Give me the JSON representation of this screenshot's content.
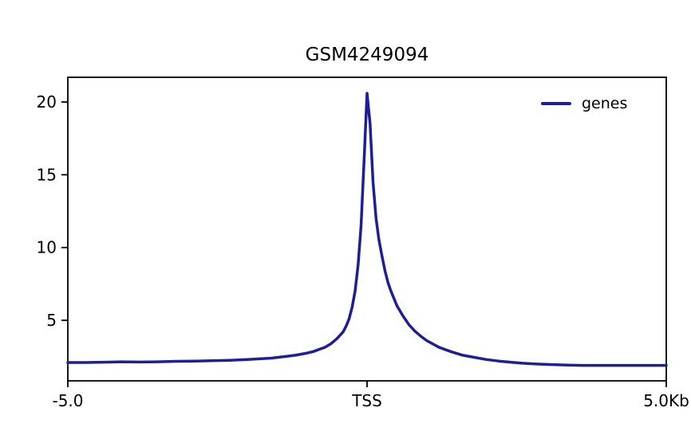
{
  "chart_data": {
    "type": "line",
    "title": "GSM4249094",
    "xlabel": "",
    "ylabel": "",
    "xlim": [
      -5,
      5
    ],
    "ylim": [
      0.84,
      21.7
    ],
    "grid": false,
    "background_color": "#ffffff",
    "frame_color": "#000000",
    "tick_font_size": 20,
    "x_unit": "Kb",
    "xticks": [
      {
        "pos": -5,
        "label": "-5.0"
      },
      {
        "pos": 0,
        "label": "TSS"
      },
      {
        "pos": 5,
        "label": "5.0Kb"
      }
    ],
    "yticks": [
      5,
      10,
      15,
      20
    ],
    "legend": {
      "position": "upper right",
      "entries": [
        "genes"
      ]
    },
    "series": [
      {
        "name": "genes",
        "color": "#1e1e96",
        "x": [
          -5.0,
          -4.7,
          -4.4,
          -4.1,
          -3.8,
          -3.5,
          -3.2,
          -2.9,
          -2.6,
          -2.3,
          -2.0,
          -1.8,
          -1.6,
          -1.4,
          -1.2,
          -1.0,
          -0.9,
          -0.8,
          -0.7,
          -0.6,
          -0.5,
          -0.4,
          -0.35,
          -0.3,
          -0.25,
          -0.2,
          -0.15,
          -0.1,
          -0.05,
          0.0,
          0.05,
          0.1,
          0.15,
          0.2,
          0.25,
          0.3,
          0.35,
          0.4,
          0.5,
          0.6,
          0.7,
          0.8,
          0.9,
          1.0,
          1.2,
          1.4,
          1.6,
          1.8,
          2.0,
          2.2,
          2.4,
          2.6,
          2.8,
          3.0,
          3.3,
          3.6,
          3.9,
          4.2,
          4.5,
          4.8,
          5.0
        ],
        "y": [
          2.1,
          2.1,
          2.12,
          2.15,
          2.13,
          2.15,
          2.18,
          2.2,
          2.22,
          2.25,
          2.3,
          2.35,
          2.4,
          2.5,
          2.6,
          2.75,
          2.85,
          3.0,
          3.15,
          3.4,
          3.75,
          4.2,
          4.6,
          5.1,
          5.9,
          7.0,
          8.8,
          11.5,
          16.0,
          20.6,
          18.5,
          14.5,
          12.0,
          10.5,
          9.4,
          8.4,
          7.6,
          7.0,
          6.0,
          5.3,
          4.7,
          4.25,
          3.9,
          3.6,
          3.15,
          2.85,
          2.6,
          2.45,
          2.3,
          2.2,
          2.12,
          2.05,
          2.0,
          1.97,
          1.93,
          1.9,
          1.9,
          1.9,
          1.9,
          1.9,
          1.9
        ]
      }
    ]
  }
}
